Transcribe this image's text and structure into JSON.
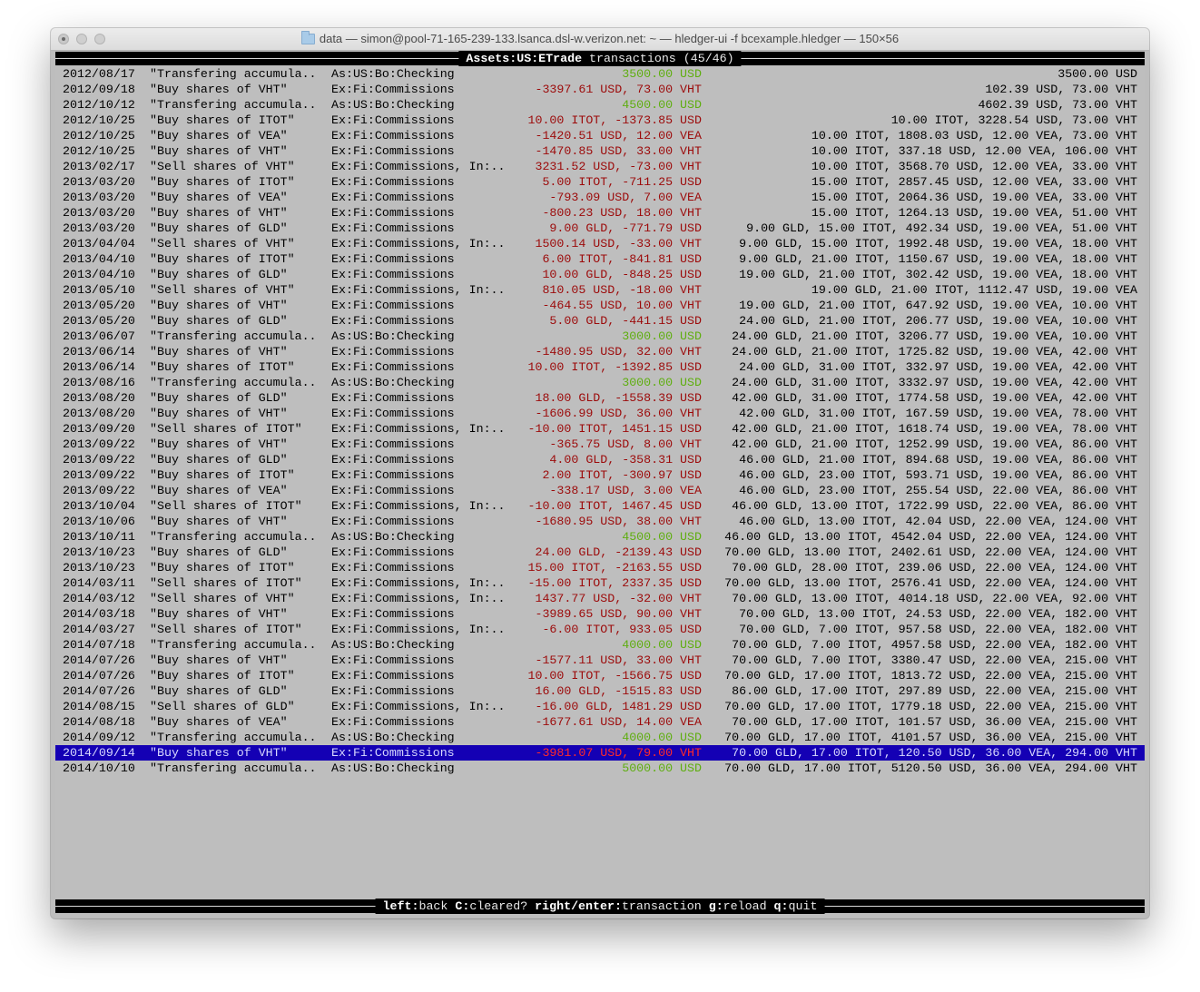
{
  "window": {
    "title": "data — simon@pool-71-165-239-133.lsanca.dsl-w.verizon.net: ~ — hledger-ui -f bcexample.hledger — 150×56",
    "folder_icon": "folder-icon"
  },
  "header": {
    "account": "Assets:US:ETrade",
    "suffix": " transactions (45/46)"
  },
  "colors": {
    "background": "#bebebe",
    "positive_amount": "#5fae10",
    "negative_amount": "#9c0a0a",
    "selection": "#1400b4"
  },
  "selected_index": 44,
  "rows": [
    [
      "2012/08/17",
      "\"Transfering accumula..",
      "As:US:Bo:Checking",
      "3500.00 USD",
      "3500.00 USD",
      "green"
    ],
    [
      "2012/09/18",
      "\"Buy shares of VHT\"",
      "Ex:Fi:Commissions",
      "-3397.61 USD, 73.00 VHT",
      "102.39 USD, 73.00 VHT",
      "red"
    ],
    [
      "2012/10/12",
      "\"Transfering accumula..",
      "As:US:Bo:Checking",
      "4500.00 USD",
      "4602.39 USD, 73.00 VHT",
      "green"
    ],
    [
      "2012/10/25",
      "\"Buy shares of ITOT\"",
      "Ex:Fi:Commissions",
      "10.00 ITOT, -1373.85 USD",
      "10.00 ITOT, 3228.54 USD, 73.00 VHT",
      "red"
    ],
    [
      "2012/10/25",
      "\"Buy shares of VEA\"",
      "Ex:Fi:Commissions",
      "-1420.51 USD, 12.00 VEA",
      "10.00 ITOT, 1808.03 USD, 12.00 VEA, 73.00 VHT",
      "red"
    ],
    [
      "2012/10/25",
      "\"Buy shares of VHT\"",
      "Ex:Fi:Commissions",
      "-1470.85 USD, 33.00 VHT",
      "10.00 ITOT, 337.18 USD, 12.00 VEA, 106.00 VHT",
      "red"
    ],
    [
      "2013/02/17",
      "\"Sell shares of VHT\"",
      "Ex:Fi:Commissions, In:..",
      "3231.52 USD, -73.00 VHT",
      "10.00 ITOT, 3568.70 USD, 12.00 VEA, 33.00 VHT",
      "red"
    ],
    [
      "2013/03/20",
      "\"Buy shares of ITOT\"",
      "Ex:Fi:Commissions",
      "5.00 ITOT, -711.25 USD",
      "15.00 ITOT, 2857.45 USD, 12.00 VEA, 33.00 VHT",
      "red"
    ],
    [
      "2013/03/20",
      "\"Buy shares of VEA\"",
      "Ex:Fi:Commissions",
      "-793.09 USD, 7.00 VEA",
      "15.00 ITOT, 2064.36 USD, 19.00 VEA, 33.00 VHT",
      "red"
    ],
    [
      "2013/03/20",
      "\"Buy shares of VHT\"",
      "Ex:Fi:Commissions",
      "-800.23 USD, 18.00 VHT",
      "15.00 ITOT, 1264.13 USD, 19.00 VEA, 51.00 VHT",
      "red"
    ],
    [
      "2013/03/20",
      "\"Buy shares of GLD\"",
      "Ex:Fi:Commissions",
      "9.00 GLD, -771.79 USD",
      "9.00 GLD, 15.00 ITOT, 492.34 USD, 19.00 VEA, 51.00 VHT",
      "red"
    ],
    [
      "2013/04/04",
      "\"Sell shares of VHT\"",
      "Ex:Fi:Commissions, In:..",
      "1500.14 USD, -33.00 VHT",
      "9.00 GLD, 15.00 ITOT, 1992.48 USD, 19.00 VEA, 18.00 VHT",
      "red"
    ],
    [
      "2013/04/10",
      "\"Buy shares of ITOT\"",
      "Ex:Fi:Commissions",
      "6.00 ITOT, -841.81 USD",
      "9.00 GLD, 21.00 ITOT, 1150.67 USD, 19.00 VEA, 18.00 VHT",
      "red"
    ],
    [
      "2013/04/10",
      "\"Buy shares of GLD\"",
      "Ex:Fi:Commissions",
      "10.00 GLD, -848.25 USD",
      "19.00 GLD, 21.00 ITOT, 302.42 USD, 19.00 VEA, 18.00 VHT",
      "red"
    ],
    [
      "2013/05/10",
      "\"Sell shares of VHT\"",
      "Ex:Fi:Commissions, In:..",
      "810.05 USD, -18.00 VHT",
      "19.00 GLD, 21.00 ITOT, 1112.47 USD, 19.00 VEA",
      "red"
    ],
    [
      "2013/05/20",
      "\"Buy shares of VHT\"",
      "Ex:Fi:Commissions",
      "-464.55 USD, 10.00 VHT",
      "19.00 GLD, 21.00 ITOT, 647.92 USD, 19.00 VEA, 10.00 VHT",
      "red"
    ],
    [
      "2013/05/20",
      "\"Buy shares of GLD\"",
      "Ex:Fi:Commissions",
      "5.00 GLD, -441.15 USD",
      "24.00 GLD, 21.00 ITOT, 206.77 USD, 19.00 VEA, 10.00 VHT",
      "red"
    ],
    [
      "2013/06/07",
      "\"Transfering accumula..",
      "As:US:Bo:Checking",
      "3000.00 USD",
      "24.00 GLD, 21.00 ITOT, 3206.77 USD, 19.00 VEA, 10.00 VHT",
      "green"
    ],
    [
      "2013/06/14",
      "\"Buy shares of VHT\"",
      "Ex:Fi:Commissions",
      "-1480.95 USD, 32.00 VHT",
      "24.00 GLD, 21.00 ITOT, 1725.82 USD, 19.00 VEA, 42.00 VHT",
      "red"
    ],
    [
      "2013/06/14",
      "\"Buy shares of ITOT\"",
      "Ex:Fi:Commissions",
      "10.00 ITOT, -1392.85 USD",
      "24.00 GLD, 31.00 ITOT, 332.97 USD, 19.00 VEA, 42.00 VHT",
      "red"
    ],
    [
      "2013/08/16",
      "\"Transfering accumula..",
      "As:US:Bo:Checking",
      "3000.00 USD",
      "24.00 GLD, 31.00 ITOT, 3332.97 USD, 19.00 VEA, 42.00 VHT",
      "green"
    ],
    [
      "2013/08/20",
      "\"Buy shares of GLD\"",
      "Ex:Fi:Commissions",
      "18.00 GLD, -1558.39 USD",
      "42.00 GLD, 31.00 ITOT, 1774.58 USD, 19.00 VEA, 42.00 VHT",
      "red"
    ],
    [
      "2013/08/20",
      "\"Buy shares of VHT\"",
      "Ex:Fi:Commissions",
      "-1606.99 USD, 36.00 VHT",
      "42.00 GLD, 31.00 ITOT, 167.59 USD, 19.00 VEA, 78.00 VHT",
      "red"
    ],
    [
      "2013/09/20",
      "\"Sell shares of ITOT\"",
      "Ex:Fi:Commissions, In:..",
      "-10.00 ITOT, 1451.15 USD",
      "42.00 GLD, 21.00 ITOT, 1618.74 USD, 19.00 VEA, 78.00 VHT",
      "red"
    ],
    [
      "2013/09/22",
      "\"Buy shares of VHT\"",
      "Ex:Fi:Commissions",
      "-365.75 USD, 8.00 VHT",
      "42.00 GLD, 21.00 ITOT, 1252.99 USD, 19.00 VEA, 86.00 VHT",
      "red"
    ],
    [
      "2013/09/22",
      "\"Buy shares of GLD\"",
      "Ex:Fi:Commissions",
      "4.00 GLD, -358.31 USD",
      "46.00 GLD, 21.00 ITOT, 894.68 USD, 19.00 VEA, 86.00 VHT",
      "red"
    ],
    [
      "2013/09/22",
      "\"Buy shares of ITOT\"",
      "Ex:Fi:Commissions",
      "2.00 ITOT, -300.97 USD",
      "46.00 GLD, 23.00 ITOT, 593.71 USD, 19.00 VEA, 86.00 VHT",
      "red"
    ],
    [
      "2013/09/22",
      "\"Buy shares of VEA\"",
      "Ex:Fi:Commissions",
      "-338.17 USD, 3.00 VEA",
      "46.00 GLD, 23.00 ITOT, 255.54 USD, 22.00 VEA, 86.00 VHT",
      "red"
    ],
    [
      "2013/10/04",
      "\"Sell shares of ITOT\"",
      "Ex:Fi:Commissions, In:..",
      "-10.00 ITOT, 1467.45 USD",
      "46.00 GLD, 13.00 ITOT, 1722.99 USD, 22.00 VEA, 86.00 VHT",
      "red"
    ],
    [
      "2013/10/06",
      "\"Buy shares of VHT\"",
      "Ex:Fi:Commissions",
      "-1680.95 USD, 38.00 VHT",
      "46.00 GLD, 13.00 ITOT, 42.04 USD, 22.00 VEA, 124.00 VHT",
      "red"
    ],
    [
      "2013/10/11",
      "\"Transfering accumula..",
      "As:US:Bo:Checking",
      "4500.00 USD",
      "46.00 GLD, 13.00 ITOT, 4542.04 USD, 22.00 VEA, 124.00 VHT",
      "green"
    ],
    [
      "2013/10/23",
      "\"Buy shares of GLD\"",
      "Ex:Fi:Commissions",
      "24.00 GLD, -2139.43 USD",
      "70.00 GLD, 13.00 ITOT, 2402.61 USD, 22.00 VEA, 124.00 VHT",
      "red"
    ],
    [
      "2013/10/23",
      "\"Buy shares of ITOT\"",
      "Ex:Fi:Commissions",
      "15.00 ITOT, -2163.55 USD",
      "70.00 GLD, 28.00 ITOT, 239.06 USD, 22.00 VEA, 124.00 VHT",
      "red"
    ],
    [
      "2014/03/11",
      "\"Sell shares of ITOT\"",
      "Ex:Fi:Commissions, In:..",
      "-15.00 ITOT, 2337.35 USD",
      "70.00 GLD, 13.00 ITOT, 2576.41 USD, 22.00 VEA, 124.00 VHT",
      "red"
    ],
    [
      "2014/03/12",
      "\"Sell shares of VHT\"",
      "Ex:Fi:Commissions, In:..",
      "1437.77 USD, -32.00 VHT",
      "70.00 GLD, 13.00 ITOT, 4014.18 USD, 22.00 VEA, 92.00 VHT",
      "red"
    ],
    [
      "2014/03/18",
      "\"Buy shares of VHT\"",
      "Ex:Fi:Commissions",
      "-3989.65 USD, 90.00 VHT",
      "70.00 GLD, 13.00 ITOT, 24.53 USD, 22.00 VEA, 182.00 VHT",
      "red"
    ],
    [
      "2014/03/27",
      "\"Sell shares of ITOT\"",
      "Ex:Fi:Commissions, In:..",
      "-6.00 ITOT, 933.05 USD",
      "70.00 GLD, 7.00 ITOT, 957.58 USD, 22.00 VEA, 182.00 VHT",
      "red"
    ],
    [
      "2014/07/18",
      "\"Transfering accumula..",
      "As:US:Bo:Checking",
      "4000.00 USD",
      "70.00 GLD, 7.00 ITOT, 4957.58 USD, 22.00 VEA, 182.00 VHT",
      "green"
    ],
    [
      "2014/07/26",
      "\"Buy shares of VHT\"",
      "Ex:Fi:Commissions",
      "-1577.11 USD, 33.00 VHT",
      "70.00 GLD, 7.00 ITOT, 3380.47 USD, 22.00 VEA, 215.00 VHT",
      "red"
    ],
    [
      "2014/07/26",
      "\"Buy shares of ITOT\"",
      "Ex:Fi:Commissions",
      "10.00 ITOT, -1566.75 USD",
      "70.00 GLD, 17.00 ITOT, 1813.72 USD, 22.00 VEA, 215.00 VHT",
      "red"
    ],
    [
      "2014/07/26",
      "\"Buy shares of GLD\"",
      "Ex:Fi:Commissions",
      "16.00 GLD, -1515.83 USD",
      "86.00 GLD, 17.00 ITOT, 297.89 USD, 22.00 VEA, 215.00 VHT",
      "red"
    ],
    [
      "2014/08/15",
      "\"Sell shares of GLD\"",
      "Ex:Fi:Commissions, In:..",
      "-16.00 GLD, 1481.29 USD",
      "70.00 GLD, 17.00 ITOT, 1779.18 USD, 22.00 VEA, 215.00 VHT",
      "red"
    ],
    [
      "2014/08/18",
      "\"Buy shares of VEA\"",
      "Ex:Fi:Commissions",
      "-1677.61 USD, 14.00 VEA",
      "70.00 GLD, 17.00 ITOT, 101.57 USD, 36.00 VEA, 215.00 VHT",
      "red"
    ],
    [
      "2014/09/12",
      "\"Transfering accumula..",
      "As:US:Bo:Checking",
      "4000.00 USD",
      "70.00 GLD, 17.00 ITOT, 4101.57 USD, 36.00 VEA, 215.00 VHT",
      "green"
    ],
    [
      "2014/09/14",
      "\"Buy shares of VHT\"",
      "Ex:Fi:Commissions",
      "-3981.07 USD, 79.00 VHT",
      "70.00 GLD, 17.00 ITOT, 120.50 USD, 36.00 VEA, 294.00 VHT",
      "red"
    ],
    [
      "2014/10/10",
      "\"Transfering accumula..",
      "As:US:Bo:Checking",
      "5000.00 USD",
      "70.00 GLD, 17.00 ITOT, 5120.50 USD, 36.00 VEA, 294.00 VHT",
      "green"
    ]
  ],
  "footer": {
    "keys": [
      {
        "key": "left",
        "action": "back"
      },
      {
        "key": "C",
        "action": "cleared?"
      },
      {
        "key": "right/enter",
        "action": "transaction"
      },
      {
        "key": "g",
        "action": "reload"
      },
      {
        "key": "q",
        "action": "quit"
      }
    ]
  }
}
